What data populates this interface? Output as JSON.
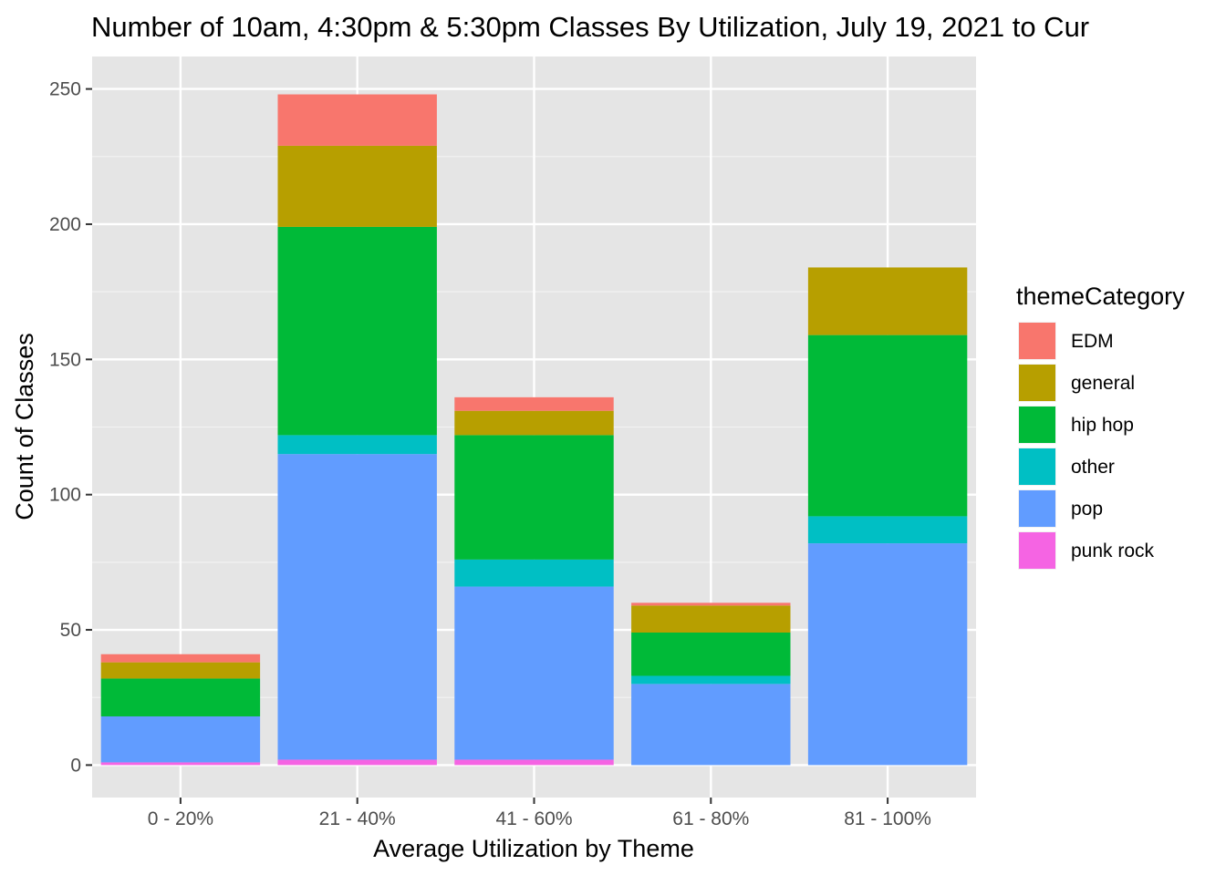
{
  "chart_data": {
    "type": "bar",
    "stacked": true,
    "title": "Number of 10am, 4:30pm & 5:30pm Classes By Utilization, July 19, 2021 to Cur",
    "xlabel": "Average Utilization by Theme",
    "ylabel": "Count of Classes",
    "ylim": [
      -12,
      262
    ],
    "yticks": [
      0,
      50,
      100,
      150,
      200,
      250
    ],
    "grid": true,
    "panel_background": "#e5e5e5",
    "legend_position": "right",
    "legend_title": "themeCategory",
    "categories": [
      "0 - 20%",
      "21 - 40%",
      "41 - 60%",
      "61 - 80%",
      "81 - 100%"
    ],
    "series": [
      {
        "name": "EDM",
        "color": "#F8766D",
        "values": [
          3,
          19,
          5,
          1,
          0
        ]
      },
      {
        "name": "general",
        "color": "#B79F00",
        "values": [
          6,
          30,
          9,
          10,
          25
        ]
      },
      {
        "name": "hip hop",
        "color": "#00BA38",
        "values": [
          14,
          77,
          46,
          16,
          67
        ]
      },
      {
        "name": "other",
        "color": "#00BFC4",
        "values": [
          0,
          7,
          10,
          3,
          10
        ]
      },
      {
        "name": "pop",
        "color": "#619CFF",
        "values": [
          17,
          113,
          64,
          30,
          82
        ]
      },
      {
        "name": "punk rock",
        "color": "#F564E3",
        "values": [
          1,
          2,
          2,
          0,
          0
        ]
      }
    ]
  }
}
